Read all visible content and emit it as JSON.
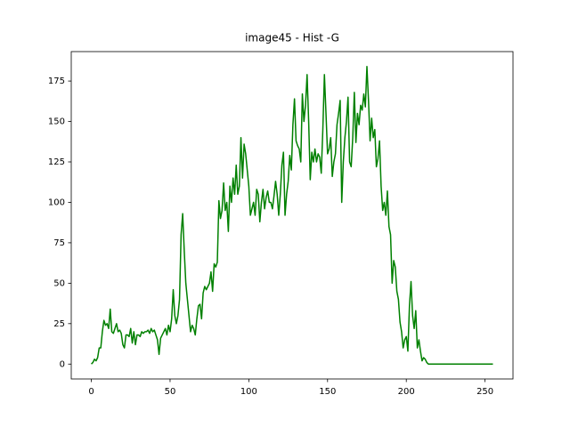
{
  "chart_data": {
    "type": "line",
    "title": "image45 - Hist -G",
    "x": [
      0,
      1,
      2,
      3,
      4,
      5,
      6,
      7,
      8,
      9,
      10,
      11,
      12,
      13,
      14,
      15,
      16,
      17,
      18,
      19,
      20,
      21,
      22,
      23,
      24,
      25,
      26,
      27,
      28,
      29,
      30,
      31,
      32,
      33,
      34,
      35,
      36,
      37,
      38,
      39,
      40,
      41,
      42,
      43,
      44,
      45,
      46,
      47,
      48,
      49,
      50,
      51,
      52,
      53,
      54,
      55,
      56,
      57,
      58,
      59,
      60,
      61,
      62,
      63,
      64,
      65,
      66,
      67,
      68,
      69,
      70,
      71,
      72,
      73,
      74,
      75,
      76,
      77,
      78,
      79,
      80,
      81,
      82,
      83,
      84,
      85,
      86,
      87,
      88,
      89,
      90,
      91,
      92,
      93,
      94,
      95,
      96,
      97,
      98,
      99,
      100,
      101,
      102,
      103,
      104,
      105,
      106,
      107,
      108,
      109,
      110,
      111,
      112,
      113,
      114,
      115,
      116,
      117,
      118,
      119,
      120,
      121,
      122,
      123,
      124,
      125,
      126,
      127,
      128,
      129,
      130,
      131,
      132,
      133,
      134,
      135,
      136,
      137,
      138,
      139,
      140,
      141,
      142,
      143,
      144,
      145,
      146,
      147,
      148,
      149,
      150,
      151,
      152,
      153,
      154,
      155,
      156,
      157,
      158,
      159,
      160,
      161,
      162,
      163,
      164,
      165,
      166,
      167,
      168,
      169,
      170,
      171,
      172,
      173,
      174,
      175,
      176,
      177,
      178,
      179,
      180,
      181,
      182,
      183,
      184,
      185,
      186,
      187,
      188,
      189,
      190,
      191,
      192,
      193,
      194,
      195,
      196,
      197,
      198,
      199,
      200,
      201,
      202,
      203,
      204,
      205,
      206,
      207,
      208,
      209,
      210,
      211,
      212,
      213,
      214,
      215,
      216,
      217,
      218,
      219,
      220,
      221,
      222,
      223,
      224,
      225,
      226,
      227,
      228,
      229,
      230,
      231,
      232,
      233,
      234,
      235,
      236,
      237,
      238,
      239,
      240,
      241,
      242,
      243,
      244,
      245,
      246,
      247,
      248,
      249,
      250,
      251,
      252,
      253,
      254,
      255
    ],
    "values": [
      0,
      1,
      3,
      2,
      4,
      10,
      10,
      20,
      27,
      24,
      25,
      22,
      34,
      20,
      19,
      22,
      25,
      20,
      21,
      19,
      12,
      10,
      18,
      18,
      17,
      22,
      13,
      20,
      12,
      18,
      18,
      17,
      20,
      19,
      20,
      20,
      21,
      19,
      22,
      20,
      21,
      18,
      15,
      6,
      16,
      18,
      20,
      22,
      18,
      24,
      20,
      28,
      46,
      30,
      25,
      30,
      40,
      80,
      93,
      70,
      50,
      40,
      30,
      20,
      24,
      22,
      18,
      28,
      36,
      37,
      28,
      44,
      48,
      46,
      48,
      50,
      57,
      45,
      62,
      60,
      63,
      101,
      90,
      95,
      112,
      95,
      100,
      82,
      110,
      100,
      115,
      105,
      123,
      105,
      110,
      140,
      115,
      136,
      130,
      120,
      110,
      92,
      96,
      100,
      92,
      108,
      105,
      88,
      100,
      108,
      96,
      103,
      107,
      100,
      100,
      96,
      104,
      113,
      105,
      92,
      105,
      123,
      131,
      92,
      105,
      113,
      129,
      120,
      148,
      164,
      138,
      135,
      133,
      125,
      167,
      150,
      160,
      179,
      150,
      114,
      131,
      125,
      133,
      125,
      130,
      128,
      118,
      145,
      179,
      155,
      130,
      133,
      140,
      116,
      125,
      130,
      148,
      155,
      163,
      100,
      125,
      140,
      150,
      165,
      125,
      122,
      140,
      168,
      137,
      155,
      148,
      160,
      157,
      167,
      159,
      184,
      163,
      138,
      152,
      140,
      145,
      122,
      127,
      138,
      110,
      95,
      100,
      92,
      107,
      85,
      80,
      50,
      64,
      60,
      45,
      40,
      26,
      20,
      10,
      15,
      17,
      8,
      36,
      51,
      30,
      22,
      33,
      10,
      15,
      8,
      2,
      4,
      3,
      1,
      0,
      0,
      0,
      0,
      0,
      0,
      0,
      0,
      0,
      0,
      0,
      0,
      0,
      0,
      0,
      0,
      0,
      0,
      0,
      0,
      0,
      0,
      0,
      0,
      0,
      0,
      0,
      0,
      0,
      0,
      0,
      0,
      0,
      0,
      0,
      0,
      0,
      0,
      0,
      0,
      0,
      0
    ],
    "color": "#008000",
    "xlim": [
      -12.75,
      267.75
    ],
    "xticks": [
      0,
      50,
      100,
      150,
      200,
      250
    ],
    "ylim": [
      -9.2,
      193.2
    ],
    "yticks": [
      0,
      25,
      50,
      75,
      100,
      125,
      150,
      175
    ]
  }
}
